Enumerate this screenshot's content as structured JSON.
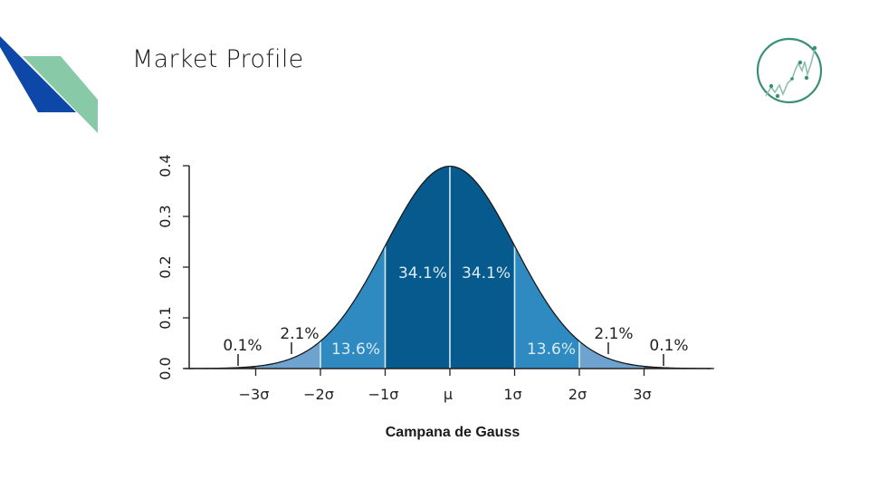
{
  "slide": {
    "title": "Market Profile",
    "caption": "Campana de Gauss",
    "logo_icon": "stock-chart-circle-icon"
  },
  "colors": {
    "deco_blue": "#0d47a8",
    "deco_green": "#88c9a8",
    "logo_green": "#3a8f78",
    "band_outer": "#6fa3cf",
    "band_mid": "#2e8ac0",
    "band_inner": "#075a8e",
    "divider": "#d9ecf5"
  },
  "chart_data": {
    "type": "area",
    "title": "Campana de Gauss",
    "xlabel": "",
    "ylabel": "",
    "ylim": [
      0.0,
      0.4
    ],
    "y_ticks": [
      "0.0",
      "0.1",
      "0.2",
      "0.3",
      "0.4"
    ],
    "x_ticks": [
      "−3σ",
      "−2σ",
      "−1σ",
      "μ",
      "1σ",
      "2σ",
      "3σ"
    ],
    "grid": false,
    "distribution": "normal",
    "regions": [
      {
        "range": "<−3σ",
        "percent": "0.1%"
      },
      {
        "range": "−3σ to −2σ",
        "percent": "2.1%"
      },
      {
        "range": "−2σ to −1σ",
        "percent": "13.6%"
      },
      {
        "range": "−1σ to μ",
        "percent": "34.1%"
      },
      {
        "range": "μ to 1σ",
        "percent": "34.1%"
      },
      {
        "range": "1σ to 2σ",
        "percent": "13.6%"
      },
      {
        "range": "2σ to 3σ",
        "percent": "2.1%"
      },
      {
        "range": ">3σ",
        "percent": "0.1%"
      }
    ]
  }
}
